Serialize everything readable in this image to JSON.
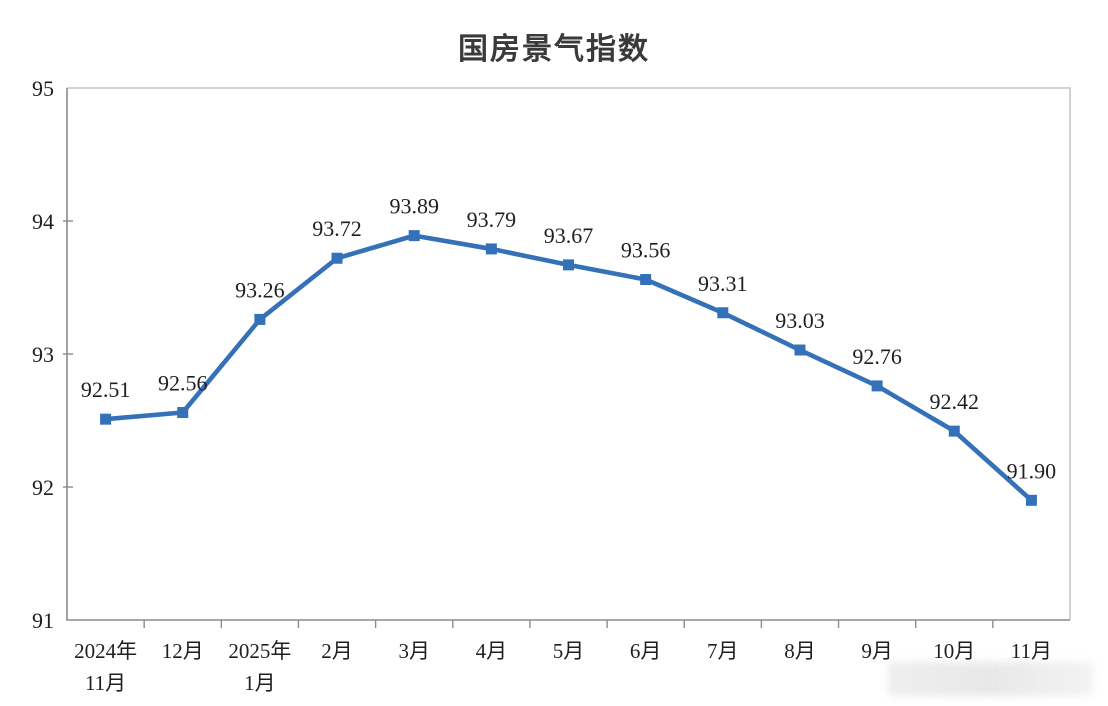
{
  "title": "国房景气指数",
  "chart_data": {
    "type": "line",
    "title": "国房景气指数",
    "categories": [
      "2024年\n11月",
      "12月",
      "2025年\n1月",
      "2月",
      "3月",
      "4月",
      "5月",
      "6月",
      "7月",
      "8月",
      "9月",
      "10月",
      "11月"
    ],
    "values": [
      92.51,
      92.56,
      93.26,
      93.72,
      93.89,
      93.79,
      93.67,
      93.56,
      93.31,
      93.03,
      92.76,
      92.42,
      91.9
    ],
    "data_labels": [
      "92.51",
      "92.56",
      "93.26",
      "93.72",
      "93.89",
      "93.79",
      "93.67",
      "93.56",
      "93.31",
      "93.03",
      "92.76",
      "92.42",
      "91.90"
    ],
    "xlabel": "",
    "ylabel": "",
    "ylim": [
      91,
      95
    ],
    "y_ticks": [
      91,
      92,
      93,
      94,
      95
    ],
    "grid": false,
    "legend": "none",
    "marker": "square",
    "colors": {
      "line": "#3471b8",
      "marker": "#3471b8",
      "label_text": "#1f1f1f",
      "axis_line": "#8c8c8c",
      "box_line": "#c6c6c6",
      "tick": "#8c8c8c",
      "title_text": "#3a3a3a"
    }
  }
}
